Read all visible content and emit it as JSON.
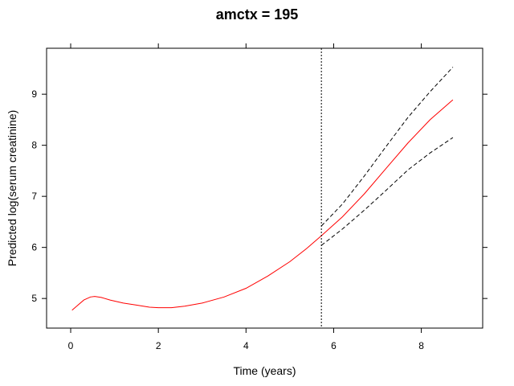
{
  "chart_data": {
    "type": "line",
    "title": "amctx = 195",
    "xlabel": "Time (years)",
    "ylabel": "Predicted log(serum creatinine)",
    "xlim": [
      -0.55,
      9.4
    ],
    "ylim": [
      4.42,
      9.9
    ],
    "x_ticks": [
      0,
      2,
      4,
      6,
      8
    ],
    "y_ticks": [
      5,
      6,
      7,
      8,
      9
    ],
    "x_tick_labels": [
      "0",
      "2",
      "4",
      "6",
      "8"
    ],
    "y_tick_labels": [
      "5",
      "6",
      "7",
      "8",
      "9"
    ],
    "grid": false,
    "vline": {
      "x": 5.72
    },
    "series": [
      {
        "role": "prediction",
        "color": "#ff0000",
        "line_style": "solid",
        "points": [
          [
            0.03,
            4.77
          ],
          [
            0.15,
            4.86
          ],
          [
            0.3,
            4.97
          ],
          [
            0.45,
            5.03
          ],
          [
            0.55,
            5.04
          ],
          [
            0.7,
            5.02
          ],
          [
            0.9,
            4.97
          ],
          [
            1.2,
            4.91
          ],
          [
            1.5,
            4.87
          ],
          [
            1.8,
            4.83
          ],
          [
            2.0,
            4.82
          ],
          [
            2.3,
            4.82
          ],
          [
            2.6,
            4.85
          ],
          [
            3.0,
            4.91
          ],
          [
            3.5,
            5.03
          ],
          [
            4.0,
            5.2
          ],
          [
            4.5,
            5.44
          ],
          [
            5.0,
            5.72
          ],
          [
            5.4,
            5.99
          ],
          [
            5.72,
            6.23
          ],
          [
            6.2,
            6.6
          ],
          [
            6.7,
            7.05
          ],
          [
            7.2,
            7.55
          ],
          [
            7.7,
            8.05
          ],
          [
            8.2,
            8.5
          ],
          [
            8.72,
            8.89
          ]
        ]
      },
      {
        "role": "upper-bound",
        "color": "#000000",
        "line_style": "dashed",
        "points": [
          [
            5.72,
            6.42
          ],
          [
            6.2,
            6.85
          ],
          [
            6.7,
            7.4
          ],
          [
            7.2,
            7.98
          ],
          [
            7.7,
            8.55
          ],
          [
            8.2,
            9.05
          ],
          [
            8.72,
            9.53
          ]
        ]
      },
      {
        "role": "lower-bound",
        "color": "#000000",
        "line_style": "dashed",
        "points": [
          [
            5.72,
            6.04
          ],
          [
            6.2,
            6.36
          ],
          [
            6.7,
            6.73
          ],
          [
            7.2,
            7.12
          ],
          [
            7.7,
            7.52
          ],
          [
            8.2,
            7.85
          ],
          [
            8.72,
            8.15
          ]
        ]
      }
    ]
  }
}
